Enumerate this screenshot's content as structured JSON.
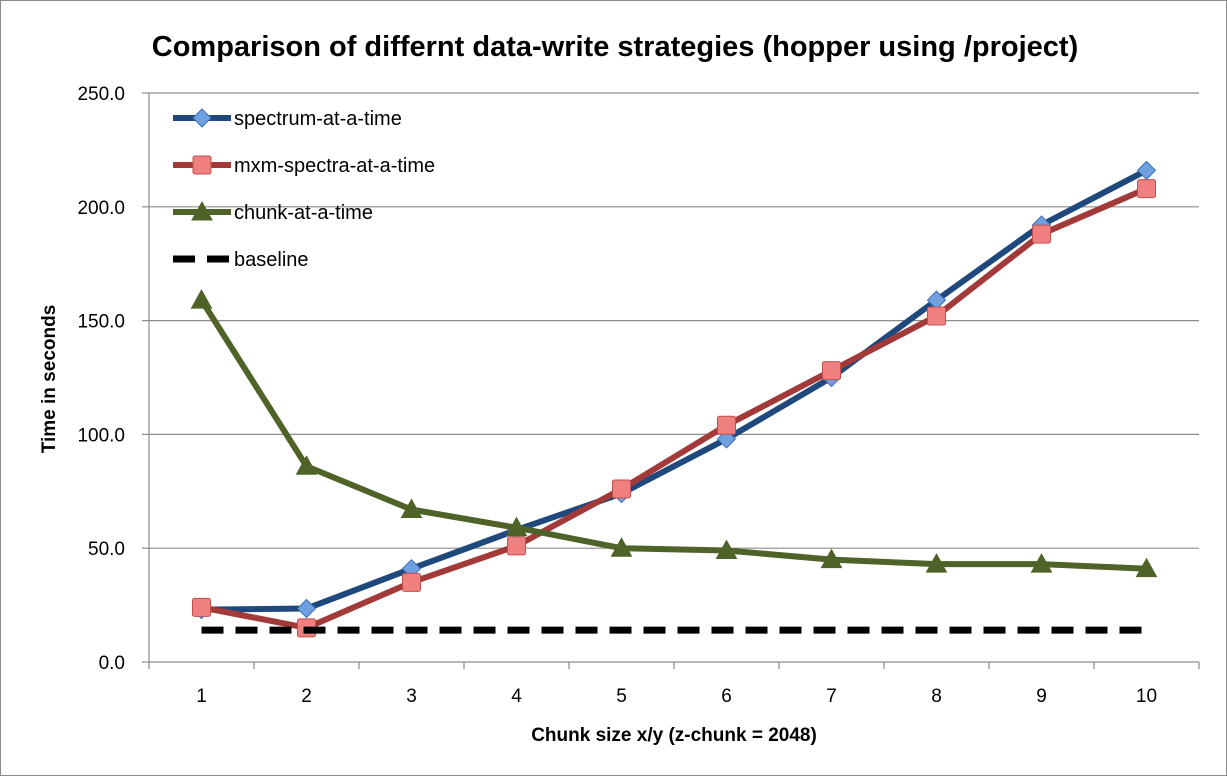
{
  "chart_data": {
    "type": "line",
    "title": "Comparison of differnt data-write strategies (hopper using /project)",
    "xlabel": "Chunk size x/y (z-chunk = 2048)",
    "ylabel": "Time in seconds",
    "ylim": [
      0,
      250
    ],
    "yticks": [
      "0.0",
      "50.0",
      "100.0",
      "150.0",
      "200.0",
      "250.0"
    ],
    "categories": [
      "1",
      "2",
      "3",
      "4",
      "5",
      "6",
      "7",
      "8",
      "9",
      "10"
    ],
    "grid": "horizontal",
    "legend_position": "top-left",
    "series": [
      {
        "name": "spectrum-at-a-time",
        "color": "#1f497d",
        "marker": "diamond",
        "marker_color": "#6fa0e0",
        "style": "solid",
        "values": [
          23,
          23.5,
          41,
          58,
          74,
          98,
          125,
          159,
          192,
          216
        ]
      },
      {
        "name": "mxm-spectra-at-a-time",
        "color": "#a33a3a",
        "marker": "square",
        "marker_color": "#f08080",
        "style": "solid",
        "values": [
          24,
          15,
          35,
          51,
          76,
          104,
          128,
          152,
          188,
          208
        ]
      },
      {
        "name": "chunk-at-a-time",
        "color": "#4f6228",
        "marker": "triangle",
        "marker_color": "#4f6228",
        "style": "solid",
        "values": [
          159,
          86,
          67,
          59,
          50,
          49,
          45,
          43,
          43,
          41
        ]
      },
      {
        "name": "baseline",
        "color": "#000000",
        "marker": "none",
        "marker_color": "#000000",
        "style": "dashed",
        "values": [
          14,
          14,
          14,
          14,
          14,
          14,
          14,
          14,
          14,
          14
        ]
      }
    ]
  }
}
